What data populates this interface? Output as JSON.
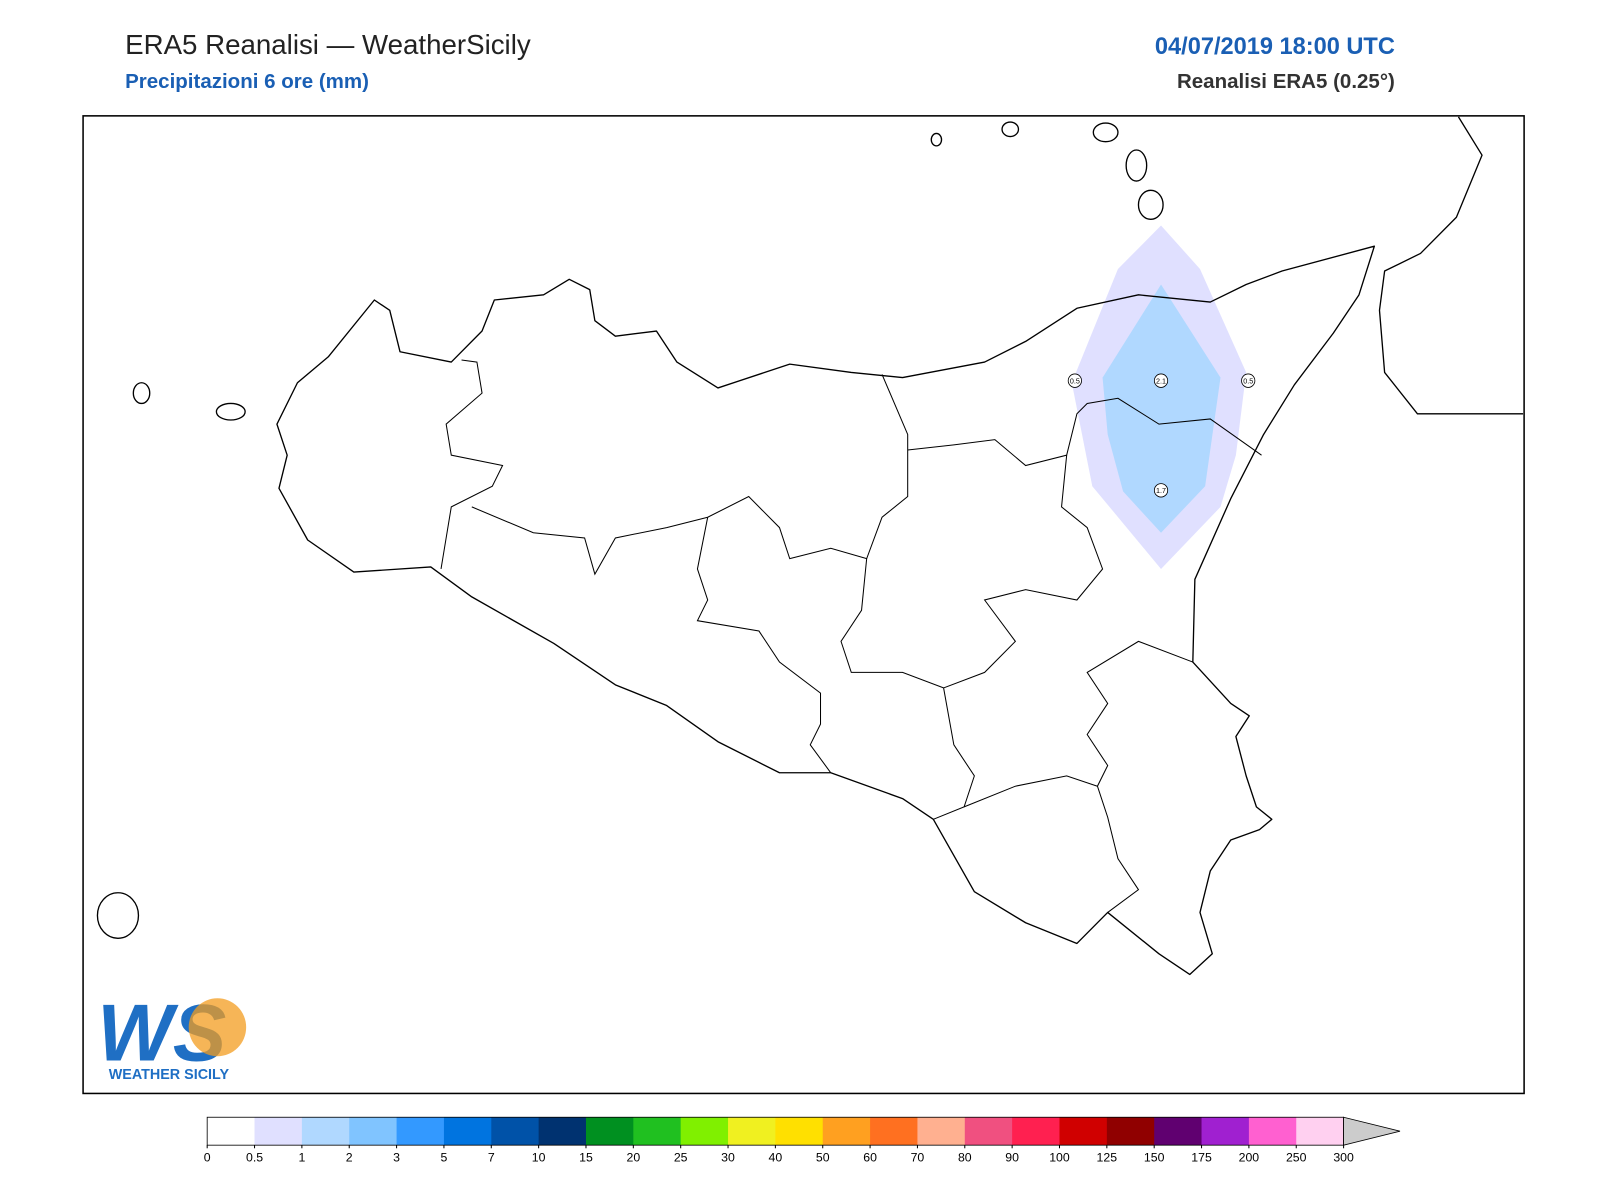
{
  "header": {
    "title": "ERA5 Reanalisi — WeatherSicily",
    "subtitle": "Precipitazioni 6 ore (mm)",
    "datetime": "04/07/2019 18:00 UTC",
    "source": "Reanalisi ERA5 (0.25°)"
  },
  "map": {
    "contour_labels": [
      "0.5",
      "2.1",
      "0.5",
      "1.7"
    ]
  },
  "logo": {
    "letters": "WS",
    "text": "WEATHER SICILY"
  },
  "colorbar": {
    "ticks": [
      0,
      0.5,
      1,
      2,
      3,
      5,
      7,
      10,
      15,
      20,
      25,
      30,
      40,
      50,
      60,
      70,
      80,
      90,
      100,
      125,
      150,
      175,
      200,
      250,
      300
    ],
    "colors": [
      "#ffffff",
      "#e0e0ff",
      "#b0d8ff",
      "#80c4ff",
      "#3399ff",
      "#0074e0",
      "#0052a8",
      "#003270",
      "#009020",
      "#20c020",
      "#80f000",
      "#f0f020",
      "#ffe000",
      "#ffa020",
      "#ff7020",
      "#ffb090",
      "#f05080",
      "#ff2050",
      "#d00000",
      "#900000",
      "#600070",
      "#a020d0",
      "#ff60d0",
      "#ffd0f0"
    ],
    "extend_color": "#cccccc"
  }
}
